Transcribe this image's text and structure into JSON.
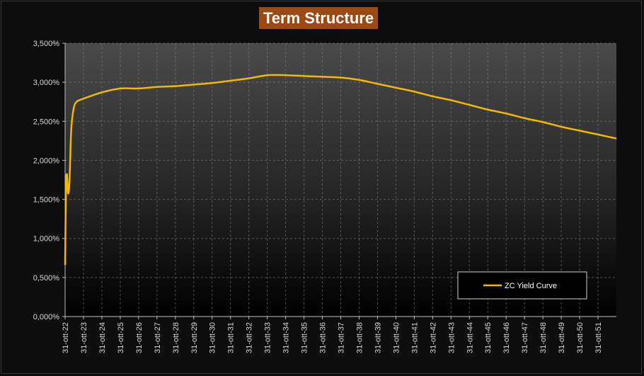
{
  "chart_data": {
    "type": "line",
    "title": "Term Structure",
    "xlabel": "",
    "ylabel": "",
    "ylim": [
      0,
      3.5
    ],
    "xlim": [
      2022.83,
      2052.83
    ],
    "y_ticks": [
      "0,000%",
      "0,500%",
      "1,000%",
      "1,500%",
      "2,000%",
      "2,500%",
      "3,000%",
      "3,500%"
    ],
    "x_ticks": [
      "31-ott-22",
      "31-ott-23",
      "31-ott-24",
      "31-ott-25",
      "31-ott-26",
      "31-ott-27",
      "31-ott-28",
      "31-ott-29",
      "31-ott-30",
      "31-ott-31",
      "31-ott-32",
      "31-ott-33",
      "31-ott-34",
      "31-ott-35",
      "31-ott-36",
      "31-ott-37",
      "31-ott-38",
      "31-ott-39",
      "31-ott-40",
      "31-ott-41",
      "31-ott-42",
      "31-ott-43",
      "31-ott-44",
      "31-ott-45",
      "31-ott-46",
      "31-ott-47",
      "31-ott-48",
      "31-ott-49",
      "31-ott-50",
      "31-ott-51"
    ],
    "grid": true,
    "legend_position": "bottom-right",
    "series": [
      {
        "name": "ZC Yield Curve",
        "color": "#f5b800",
        "x": [
          2022.83,
          2022.88,
          2022.93,
          2022.98,
          2023.03,
          2023.08,
          2023.13,
          2023.18,
          2023.25,
          2023.33,
          2023.45,
          2023.6,
          2023.83,
          2024.83,
          2025.83,
          2026.83,
          2027.83,
          2028.83,
          2029.83,
          2030.83,
          2031.83,
          2032.83,
          2033.83,
          2034.83,
          2035.83,
          2036.83,
          2037.83,
          2038.83,
          2039.83,
          2040.83,
          2041.83,
          2042.83,
          2043.83,
          2044.83,
          2045.83,
          2046.83,
          2047.83,
          2048.83,
          2049.83,
          2050.83,
          2051.83,
          2052.83
        ],
        "values": [
          0.66,
          1.65,
          1.82,
          1.6,
          1.6,
          1.8,
          2.2,
          2.45,
          2.6,
          2.7,
          2.75,
          2.77,
          2.79,
          2.87,
          2.92,
          2.92,
          2.94,
          2.95,
          2.97,
          2.99,
          3.02,
          3.05,
          3.09,
          3.09,
          3.08,
          3.07,
          3.06,
          3.03,
          2.98,
          2.93,
          2.88,
          2.82,
          2.77,
          2.71,
          2.65,
          2.6,
          2.54,
          2.49,
          2.43,
          2.38,
          2.33,
          2.28
        ]
      }
    ]
  }
}
